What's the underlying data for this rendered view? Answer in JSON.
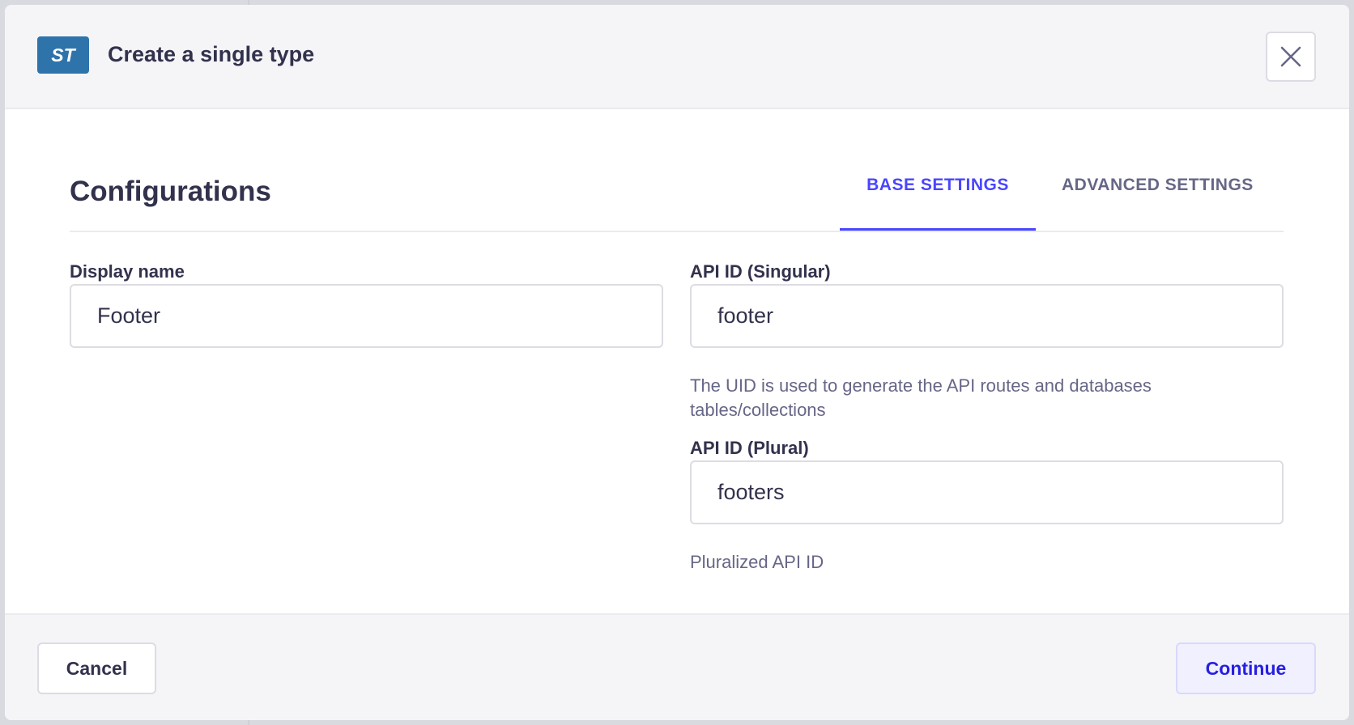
{
  "header": {
    "badge": "ST",
    "title": "Create a single type",
    "close_icon": "close-icon"
  },
  "main": {
    "heading": "Configurations",
    "tabs": [
      {
        "label": "BASE SETTINGS",
        "active": true
      },
      {
        "label": "ADVANCED SETTINGS",
        "active": false
      }
    ],
    "fields": {
      "display_name": {
        "label": "Display name",
        "value": "Footer"
      },
      "singular": {
        "label": "API ID (Singular)",
        "value": "footer",
        "hint": "The UID is used to generate the API routes and databases tables/collections"
      },
      "plural": {
        "label": "API ID (Plural)",
        "value": "footers",
        "hint": "Pluralized API ID"
      }
    }
  },
  "footer": {
    "cancel": "Cancel",
    "continue": "Continue"
  },
  "colors": {
    "accent": "#4945ff",
    "badge": "#2f73ab"
  }
}
